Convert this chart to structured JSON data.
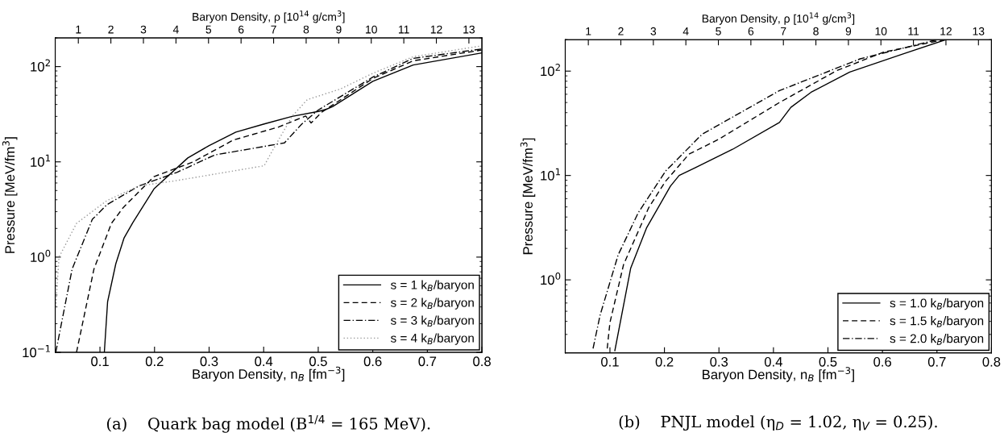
{
  "chart_data": [
    {
      "type": "line",
      "xlabel": "Baryon Density, n$_{B}$ [fm$^{−3}$]",
      "ylabel": "Pressure [MeV/fm$^{3}$]",
      "x2label": "Baryon Density, ρ [10$^{14}$ g/cm$^{3}$]",
      "xlim": [
        0.018,
        0.8
      ],
      "xticks": [
        0.1,
        0.2,
        0.3,
        0.4,
        0.5,
        0.6,
        0.7,
        0.8
      ],
      "x2lim": [
        0.29,
        13.4
      ],
      "x2ticks": [
        1,
        2,
        3,
        4,
        5,
        6,
        7,
        8,
        9,
        10,
        11,
        12,
        13
      ],
      "ylim": [
        0.1,
        200
      ],
      "yticks": [
        {
          "value": 0.1,
          "label": "10$^{−1}$"
        },
        {
          "value": 1,
          "label": "10$^{0}$"
        },
        {
          "value": 10,
          "label": "10$^{1}$"
        },
        {
          "value": 100,
          "label": "10$^{2}$"
        }
      ],
      "log": "y",
      "grid": false,
      "legend": "bottom right",
      "marker": "none",
      "annotations": [
        "(a)    Quark bag model (B$^{1/4}$ = 165 MeV)."
      ],
      "series": [
        {
          "name": "s = 1 k$_{B}$/baryon",
          "color": "#000000",
          "line_style": "solid",
          "x": [
            0.108,
            0.114,
            0.129,
            0.144,
            0.16,
            0.199,
            0.261,
            0.3,
            0.349,
            0.401,
            0.452,
            0.5,
            0.514,
            0.526,
            0.6,
            0.674,
            0.799
          ],
          "values": [
            0.1,
            0.34,
            0.85,
            1.58,
            2.29,
            5.2,
            11,
            14.8,
            20.5,
            25,
            30,
            33.8,
            35.5,
            37.9,
            70,
            104,
            139
          ]
        },
        {
          "name": "s = 2 k$_{B}$/baryon",
          "color": "#000000",
          "line_style": "dashed",
          "x": [
            0.057,
            0.089,
            0.121,
            0.143,
            0.199,
            0.271,
            0.344,
            0.428,
            0.477,
            0.487,
            0.507,
            0.6,
            0.674,
            0.799
          ],
          "values": [
            0.1,
            0.75,
            2.26,
            3.33,
            7.0,
            10,
            16.9,
            23.3,
            30.3,
            25.6,
            33.4,
            75,
            115,
            149
          ]
        },
        {
          "name": "s = 3 k$_{B}$/baryon",
          "color": "#000000",
          "line_style": "dashdot",
          "x": [
            0.019,
            0.049,
            0.086,
            0.113,
            0.172,
            0.241,
            0.31,
            0.438,
            0.47,
            0.5,
            0.6,
            0.674,
            0.799
          ],
          "values": [
            0.1,
            0.75,
            2.49,
            3.56,
            5.6,
            7.75,
            11.8,
            15.8,
            25,
            35,
            77.5,
            122,
            153
          ]
        },
        {
          "name": "s = 4 k$_{B}$/baryon",
          "color": "#999999",
          "line_style": "dotted",
          "x": [
            0.019,
            0.025,
            0.057,
            0.113,
            0.172,
            0.236,
            0.401,
            0.413,
            0.452,
            0.48,
            0.54,
            0.6,
            0.674,
            0.799
          ],
          "values": [
            0.3,
            1.0,
            2.26,
            3.93,
            5.6,
            6.3,
            9.1,
            12.2,
            30,
            45,
            58,
            85,
            127,
            165
          ]
        }
      ]
    },
    {
      "type": "line",
      "xlabel": "Baryon Density, n$_{B}$ [fm$^{−3}$]",
      "ylabel": "Pressure [MeV/fm$^{3}$]",
      "x2label": "Baryon Density, ρ [10$^{14}$ g/cm$^{3}$]",
      "xlim": [
        0.018,
        0.8
      ],
      "xticks": [
        0.1,
        0.2,
        0.3,
        0.4,
        0.5,
        0.6,
        0.7,
        0.8
      ],
      "x2lim": [
        0.29,
        13.4
      ],
      "x2ticks": [
        1,
        2,
        3,
        4,
        5,
        6,
        7,
        8,
        9,
        10,
        11,
        12,
        13
      ],
      "ylim": [
        0.2,
        200
      ],
      "yticks": [
        {
          "value": 1,
          "label": "10$^{0}$"
        },
        {
          "value": 10,
          "label": "10$^{1}$"
        },
        {
          "value": 100,
          "label": "10$^{2}$"
        }
      ],
      "log": "y",
      "grid": false,
      "legend": "bottom right",
      "marker": "none",
      "annotations": [
        "(b)    PNJL model (η$_{D}$ = 1.02, η$_{V}$ = 0.25)."
      ],
      "series": [
        {
          "name": "s = 1.0 k$_{B}$/baryon",
          "color": "#000000",
          "line_style": "solid",
          "x": [
            0.109,
            0.138,
            0.167,
            0.211,
            0.227,
            0.257,
            0.325,
            0.411,
            0.432,
            0.469,
            0.54,
            0.639,
            0.716
          ],
          "values": [
            0.21,
            1.29,
            3.13,
            7.9,
            10,
            11.9,
            17.8,
            32.2,
            45,
            62.7,
            98,
            147,
            200
          ]
        },
        {
          "name": "s = 1.5 k$_{B}$/baryon",
          "color": "#000000",
          "line_style": "dashed",
          "x": [
            0.095,
            0.1,
            0.125,
            0.171,
            0.202,
            0.245,
            0.3,
            0.411,
            0.516,
            0.602,
            0.713
          ],
          "values": [
            0.22,
            0.39,
            1.4,
            4.9,
            8.8,
            16,
            22.3,
            50,
            101,
            152,
            200
          ]
        },
        {
          "name": "s = 2.0 k$_{B}$/baryon",
          "color": "#000000",
          "line_style": "dashdot",
          "x": [
            0.069,
            0.082,
            0.115,
            0.152,
            0.202,
            0.269,
            0.411,
            0.559,
            0.7
          ],
          "values": [
            0.22,
            0.46,
            1.73,
            4.4,
            11,
            24.8,
            65,
            131,
            200
          ]
        }
      ]
    }
  ]
}
